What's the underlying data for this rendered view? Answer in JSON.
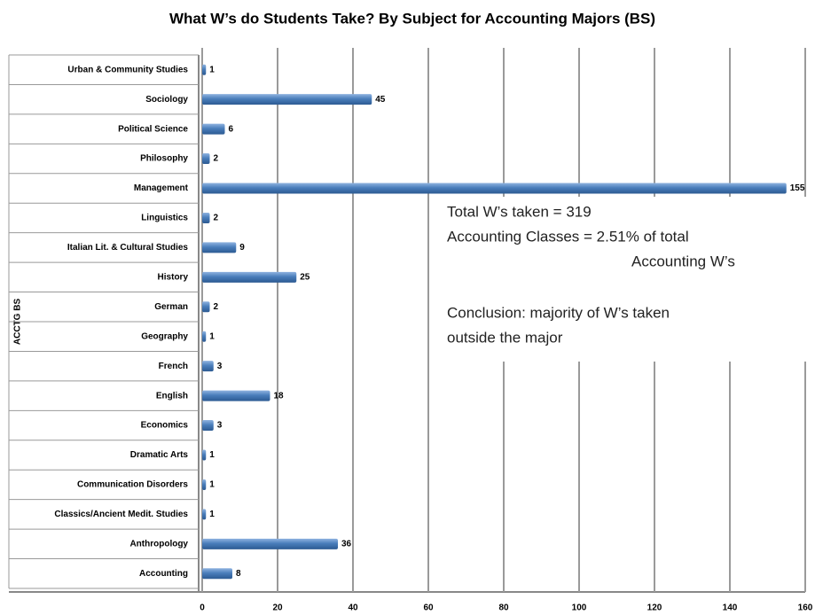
{
  "chart_data": {
    "type": "bar",
    "orientation": "horizontal",
    "title": "What W’s do Students Take? By Subject for Accounting Majors (BS)",
    "y_label": "ACCTG BS",
    "categories": [
      "Accounting",
      "Anthropology",
      "Classics/Ancient Medit. Studies",
      "Communication Disorders",
      "Dramatic Arts",
      "Economics",
      "English",
      "French",
      "Geography",
      "German",
      "History",
      "Italian Lit. & Cultural Studies",
      "Linguistics",
      "Management",
      "Philosophy",
      "Political Science",
      "Sociology",
      "Urban & Community Studies"
    ],
    "values": [
      8,
      36,
      1,
      1,
      1,
      3,
      18,
      3,
      1,
      2,
      25,
      9,
      2,
      155,
      2,
      6,
      45,
      1
    ],
    "color": "#4a7ebb",
    "xlim": [
      0,
      160
    ],
    "xticks": [
      0,
      20,
      40,
      60,
      80,
      100,
      120,
      140,
      160
    ],
    "grid": true,
    "annotations": [
      "Total W’s taken = 319",
      "Accounting Classes = 2.51% of total",
      "Accounting W’s",
      "Conclusion: majority of W’s taken",
      "outside the major"
    ]
  }
}
